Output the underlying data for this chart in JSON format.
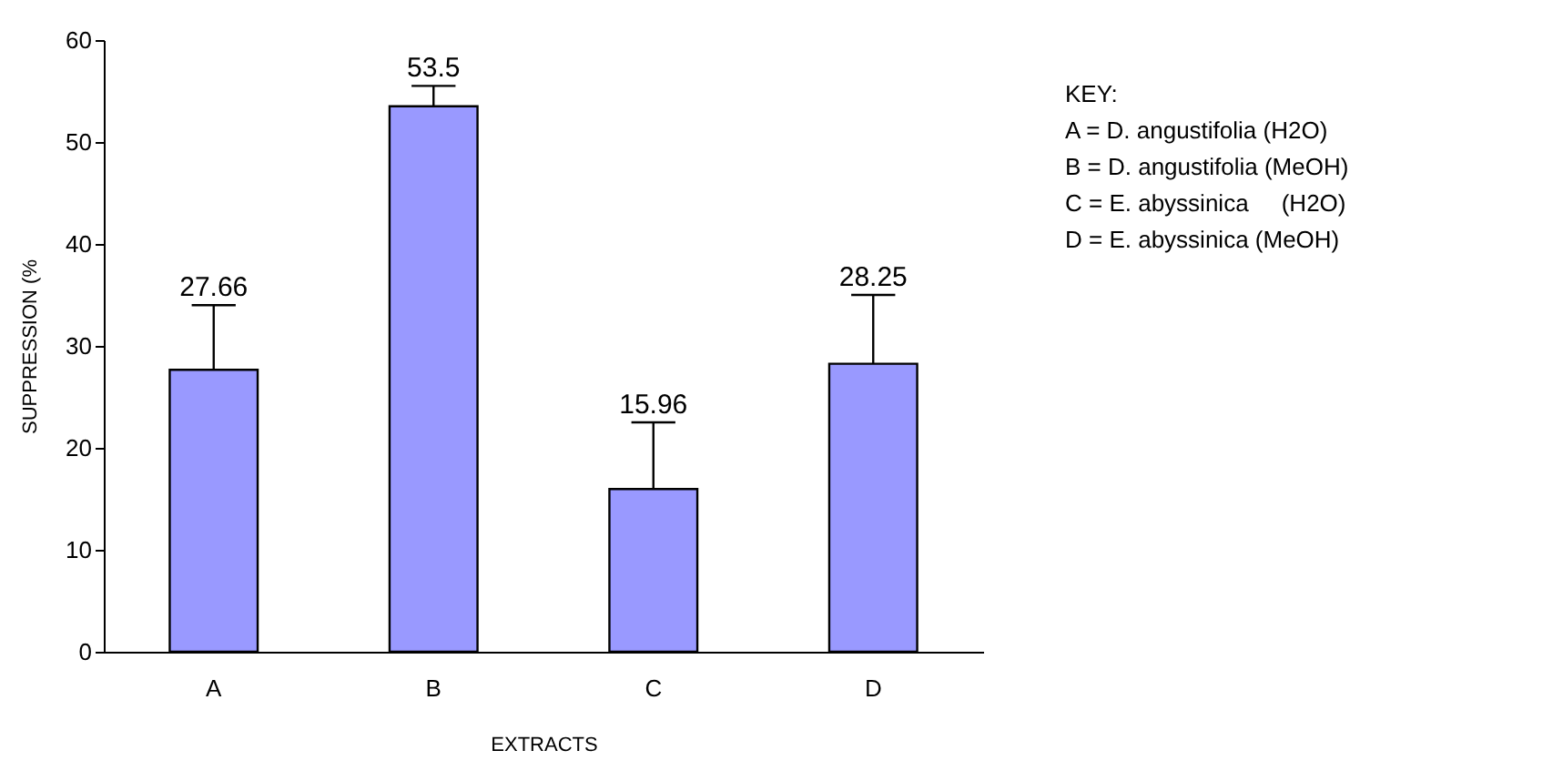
{
  "chart_data": {
    "type": "bar",
    "xlabel": "EXTRACTS",
    "ylabel": "SUPPRESSION (%",
    "categories": [
      "A",
      "B",
      "C",
      "D"
    ],
    "values": [
      27.66,
      53.5,
      15.96,
      28.25
    ],
    "errors": [
      [
        27.66,
        34.0
      ],
      [
        53.5,
        55.5
      ],
      [
        15.96,
        22.5
      ],
      [
        28.25,
        35.0
      ]
    ],
    "color": "#9999ff",
    "data_labels": true,
    "ylim": [
      0,
      60
    ],
    "yticks": [
      0,
      10,
      20,
      30,
      40,
      50,
      60
    ],
    "grid": false,
    "annotations": [
      "KEY:",
      "A = D. angustifolia (H2O)",
      "B = D. angustifolia (MeOH)",
      "C = E. abyssinica     (H2O)",
      "D = E. abyssinica (MeOH)"
    ]
  }
}
